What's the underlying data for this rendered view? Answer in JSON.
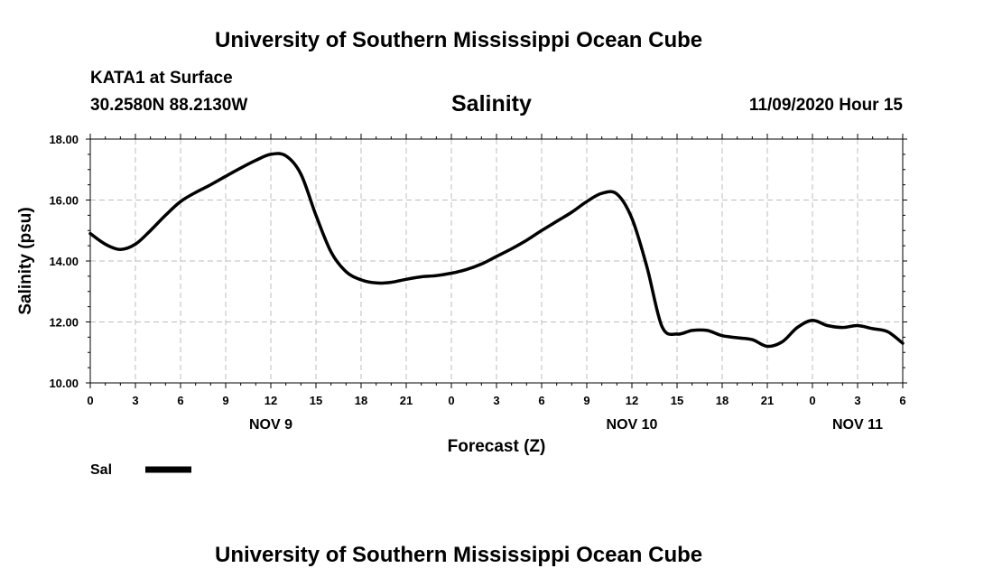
{
  "page": {
    "title_top": "University of Southern Mississippi Ocean Cube",
    "title_bottom": "University of Southern Mississippi Ocean Cube",
    "station": "KATA1 at Surface",
    "location": "30.2580N 88.2130W",
    "datetime": "11/09/2020 Hour 15"
  },
  "chart_data": {
    "type": "line",
    "title": "Salinity",
    "xlabel": "Forecast (Z)",
    "ylabel": "Salinity (psu)",
    "ylim": [
      10,
      18
    ],
    "xlim": [
      0,
      54
    ],
    "grid": true,
    "y_ticks": [
      "10.00",
      "12.00",
      "14.00",
      "16.00",
      "18.00"
    ],
    "y_tick_values": [
      10,
      12,
      14,
      16,
      18
    ],
    "x_tick_values": [
      0,
      3,
      6,
      9,
      12,
      15,
      18,
      21,
      24,
      27,
      30,
      33,
      36,
      39,
      42,
      45,
      48,
      51,
      54
    ],
    "x_tick_labels": [
      "0",
      "3",
      "6",
      "9",
      "12",
      "15",
      "18",
      "21",
      "0",
      "3",
      "6",
      "9",
      "12",
      "15",
      "18",
      "21",
      "0",
      "3",
      "6"
    ],
    "date_labels": [
      {
        "x": 12,
        "label": "NOV 9"
      },
      {
        "x": 36,
        "label": "NOV 10"
      },
      {
        "x": 51,
        "label": "NOV 11"
      }
    ],
    "legend": {
      "placement": "bottom-left",
      "color": "#000000"
    },
    "series": [
      {
        "name": "Sal",
        "color": "#000000",
        "x": [
          0,
          1,
          2,
          3,
          4,
          5,
          6,
          7,
          8,
          9,
          10,
          11,
          12,
          13,
          14,
          15,
          16,
          17,
          18,
          19,
          20,
          21,
          22,
          23,
          24,
          25,
          26,
          27,
          28,
          29,
          30,
          31,
          32,
          33,
          34,
          35,
          36,
          37,
          38,
          39,
          40,
          41,
          42,
          43,
          44,
          45,
          46,
          47,
          48,
          49,
          50,
          51,
          52,
          53,
          54
        ],
        "y": [
          14.9,
          14.55,
          14.38,
          14.55,
          15.0,
          15.5,
          15.95,
          16.25,
          16.5,
          16.78,
          17.05,
          17.3,
          17.5,
          17.45,
          16.85,
          15.5,
          14.3,
          13.65,
          13.38,
          13.28,
          13.3,
          13.4,
          13.48,
          13.52,
          13.6,
          13.72,
          13.9,
          14.15,
          14.4,
          14.68,
          15.0,
          15.3,
          15.6,
          15.95,
          16.22,
          16.2,
          15.4,
          13.8,
          11.85,
          11.6,
          11.72,
          11.72,
          11.55,
          11.48,
          11.42,
          11.2,
          11.35,
          11.82,
          12.05,
          11.88,
          11.82,
          11.88,
          11.78,
          11.68,
          11.3
        ]
      }
    ]
  }
}
